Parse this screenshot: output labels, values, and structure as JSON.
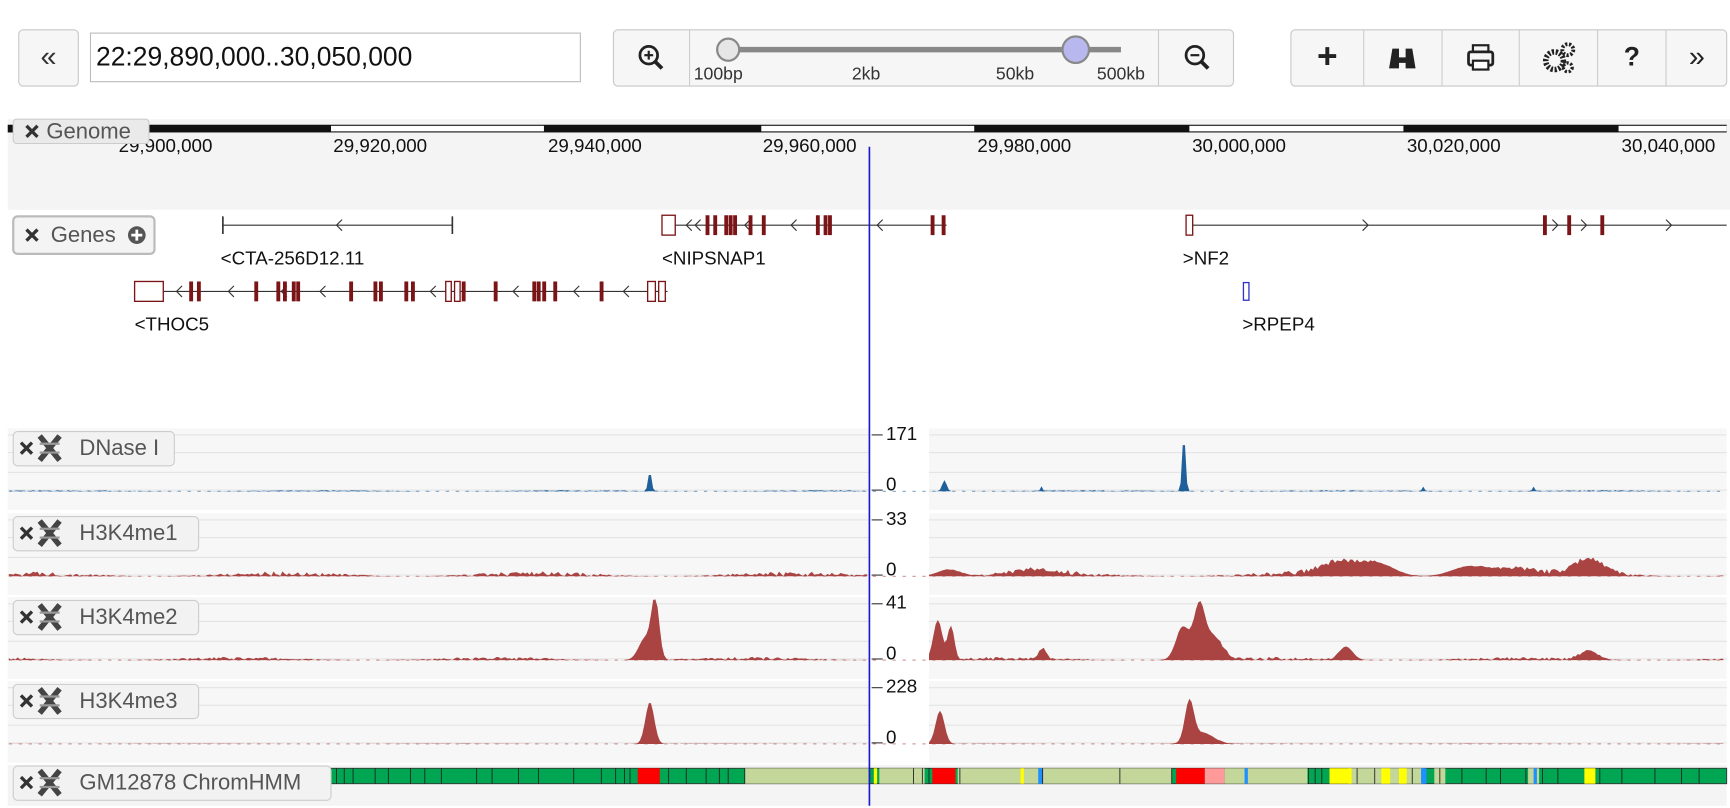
{
  "toolbar": {
    "back": "«",
    "location": "22:29,890,000..30,050,000",
    "zoom_labels": [
      "100bp",
      "2kb",
      "50kb",
      "500kb"
    ],
    "buttons": [
      "+",
      "?",
      "»"
    ]
  },
  "genome": {
    "label": "Genome",
    "ticks": [
      "29,900,000",
      "29,920,000",
      "29,940,000",
      "29,960,000",
      "29,980,000",
      "30,000,000",
      "30,020,000",
      "30,040,000"
    ]
  },
  "genes": {
    "label": "Genes",
    "items": [
      {
        "label": "<CTA-256D12.11"
      },
      {
        "label": "<NIPSNAP1"
      },
      {
        "label": ">NF2"
      },
      {
        "label": "<THOC5"
      },
      {
        "label": ">RPEP4"
      }
    ]
  },
  "tracks": [
    {
      "label": "DNase I",
      "max": "171",
      "min": "0"
    },
    {
      "label": "H3K4me1",
      "max": "33",
      "min": "0"
    },
    {
      "label": "H3K4me2",
      "max": "41",
      "min": "0"
    },
    {
      "label": "H3K4me3",
      "max": "228",
      "min": "0"
    }
  ],
  "chromhmm": {
    "label": "GM12878 ChromHMM"
  }
}
